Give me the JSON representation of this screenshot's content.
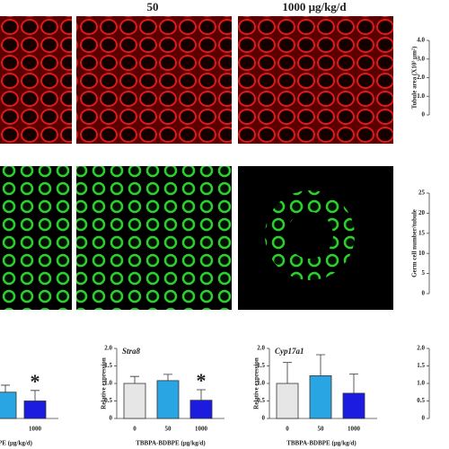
{
  "headings": [
    "50",
    "1000 μg/kg/d"
  ],
  "chart_data": [
    {
      "type": "axis",
      "y_label": "Tubule area (X10³ μm²)",
      "ylim": [
        0,
        4
      ],
      "yticks": [
        0,
        {
          "value": 1,
          "label": "1.0"
        },
        {
          "value": 2,
          "label": "2.0"
        },
        {
          "value": 3,
          "label": "3.0"
        },
        {
          "value": 4,
          "label": "4.0"
        }
      ]
    },
    {
      "type": "axis",
      "y_label": "Germ cell number/tubule",
      "ylim": [
        0,
        25
      ],
      "yticks": [
        0,
        5,
        10,
        15,
        20,
        25
      ]
    },
    {
      "type": "bar",
      "x_label": "PE (μg/kg/d)",
      "categories": [
        null,
        "1000"
      ],
      "values": [
        0.75,
        0.5
      ],
      "errors": [
        0.2,
        0.3
      ],
      "colors": [
        "#2aa5e4",
        "#1c1ce0"
      ],
      "significance": [
        null,
        "*"
      ],
      "ylim": [
        0,
        2
      ]
    },
    {
      "type": "bar",
      "title": "Stra8",
      "y_label": "Relative expression",
      "x_label": "TBBPA-BDBPE (μg/kg/d)",
      "categories": [
        "0",
        "50",
        "1000"
      ],
      "values": [
        1.0,
        1.08,
        0.52
      ],
      "errors": [
        0.2,
        0.18,
        0.3
      ],
      "colors": [
        "#e6e6e6",
        "#2aa5e4",
        "#1c1ce0"
      ],
      "significance": [
        null,
        null,
        "*"
      ],
      "ylim": [
        0,
        2
      ],
      "yticks": [
        0,
        0.5,
        {
          "value": 1,
          "label": "1.0"
        },
        1.5,
        {
          "value": 2,
          "label": "2.0"
        }
      ]
    },
    {
      "type": "bar",
      "title": "Cyp17a1",
      "y_label": "Relative expression",
      "x_label": "TBBPA-BDBPE (μg/kg/d)",
      "categories": [
        "0",
        "50",
        "1000"
      ],
      "values": [
        1.0,
        1.22,
        0.72
      ],
      "errors": [
        0.6,
        0.6,
        0.55
      ],
      "colors": [
        "#e6e6e6",
        "#2aa5e4",
        "#1c1ce0"
      ],
      "ylim": [
        0,
        2
      ],
      "yticks": [
        0,
        0.5,
        {
          "value": 1,
          "label": "1.0"
        },
        1.5,
        {
          "value": 2,
          "label": "2.0"
        }
      ]
    },
    {
      "type": "axis",
      "ylim": [
        0,
        2
      ],
      "yticks": [
        0,
        0.5,
        {
          "value": 1,
          "label": "1.0"
        },
        1.5,
        {
          "value": 2,
          "label": "2.0"
        }
      ]
    }
  ]
}
